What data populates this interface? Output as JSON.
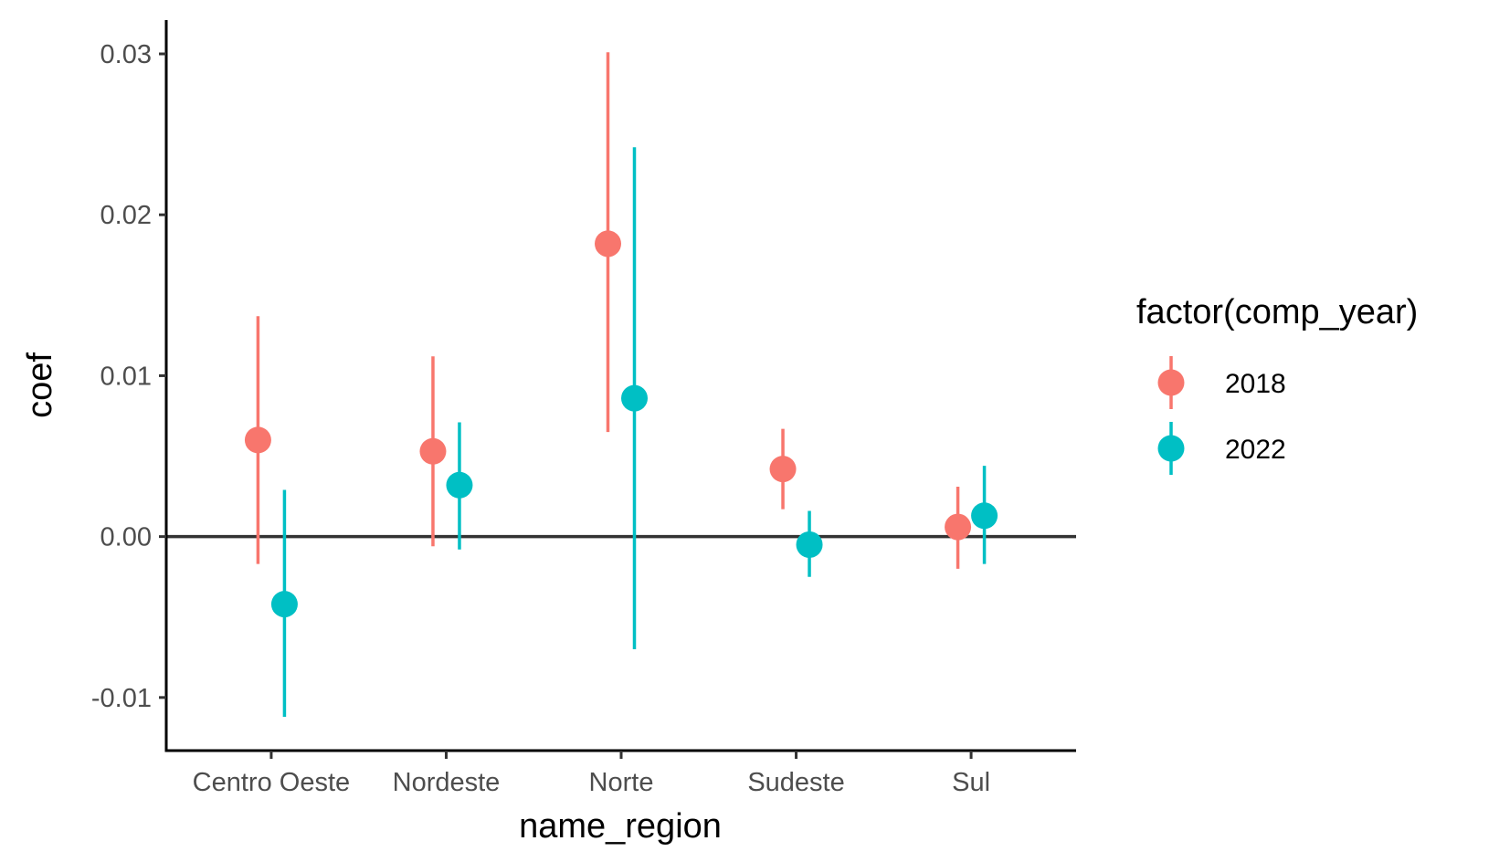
{
  "chart_data": {
    "type": "scatter",
    "subtype": "pointrange",
    "xlabel": "name_region",
    "ylabel": "coef",
    "categories": [
      "Centro Oeste",
      "Nordeste",
      "Norte",
      "Sudeste",
      "Sul"
    ],
    "ylim": [
      -0.0133,
      0.0321
    ],
    "yticks": [
      -0.01,
      0.0,
      0.01,
      0.02,
      0.03
    ],
    "ytick_labels": [
      "-0.01",
      "0.00",
      "0.01",
      "0.02",
      "0.03"
    ],
    "reference_line": 0.0,
    "grid": false,
    "legend": {
      "title": "factor(comp_year)",
      "placement": "right"
    },
    "series": [
      {
        "name": "2018",
        "color": "#F8766D",
        "values": [
          0.006,
          0.0053,
          0.0182,
          0.0042,
          0.0006
        ],
        "lower": [
          -0.0017,
          -0.0006,
          0.0065,
          0.0017,
          -0.002
        ],
        "upper": [
          0.0137,
          0.0112,
          0.0301,
          0.0067,
          0.0031
        ]
      },
      {
        "name": "2022",
        "color": "#00BFC4",
        "values": [
          -0.0042,
          0.0032,
          0.0086,
          -0.0005,
          0.0013
        ],
        "lower": [
          -0.0112,
          -0.0008,
          -0.007,
          -0.0025,
          -0.0017
        ],
        "upper": [
          0.0029,
          0.0071,
          0.0242,
          0.0016,
          0.0044
        ]
      }
    ]
  }
}
